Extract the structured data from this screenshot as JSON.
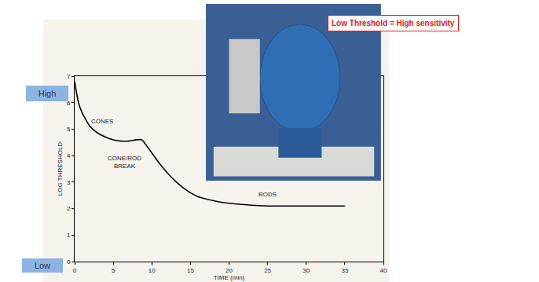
{
  "chart_data": {
    "type": "line",
    "x": [
      0,
      0.5,
      1,
      2,
      3,
      4,
      5,
      6,
      7,
      8,
      8.7,
      9.5,
      10,
      11,
      12,
      13,
      14,
      15,
      16,
      18,
      20,
      22,
      25,
      30,
      35
    ],
    "values": [
      6.8,
      6.0,
      5.6,
      5.1,
      4.85,
      4.7,
      4.6,
      4.55,
      4.55,
      4.6,
      4.6,
      4.3,
      4.1,
      3.7,
      3.35,
      3.05,
      2.8,
      2.6,
      2.45,
      2.3,
      2.2,
      2.15,
      2.1,
      2.1,
      2.1
    ],
    "color": "#000000",
    "x_label": "TIME (min)",
    "y_label": "LOG THRESHOLD",
    "xlim": [
      0,
      40
    ],
    "xticks": [
      0,
      5,
      10,
      15,
      20,
      25,
      30,
      35,
      40
    ],
    "ylim": [
      0,
      7
    ],
    "yticks": [
      0,
      1,
      2,
      3,
      4,
      5,
      6,
      7
    ],
    "grid": false,
    "annotations": [
      {
        "lines": [
          "CONES"
        ],
        "x": 3.6,
        "y": 5.3
      },
      {
        "lines": [
          "CONE/ROD",
          "BREAK"
        ],
        "x": 6.5,
        "y": 3.75
      },
      {
        "lines": [
          "RODS"
        ],
        "x": 25,
        "y": 2.55
      }
    ],
    "high_label": "High",
    "low_label": "Low",
    "note": "Low Threshold = High sensitivity"
  }
}
